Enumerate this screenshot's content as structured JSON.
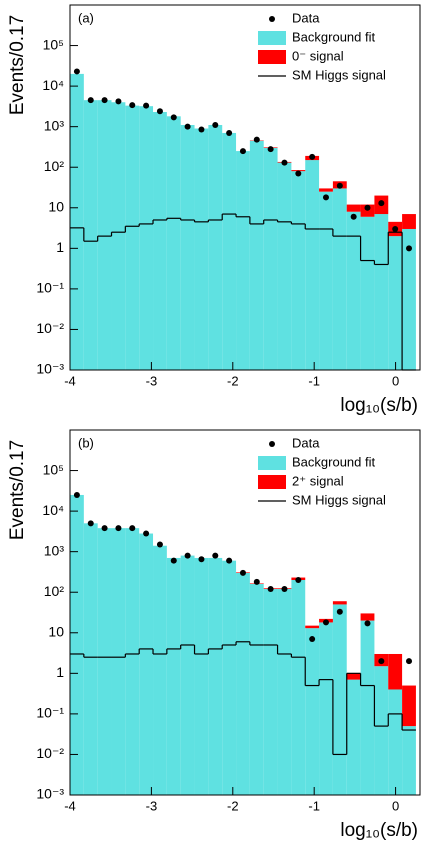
{
  "chart_data": [
    {
      "type": "histogram",
      "panel_label": "(a)",
      "ylabel": "Events/0.17",
      "xlabel": "log₁₀(s/b)",
      "log_scale": true,
      "bins": [
        -4,
        -3.83,
        -3.66,
        -3.49,
        -3.32,
        -3.15,
        -2.98,
        -2.81,
        -2.64,
        -2.47,
        -2.3,
        -2.13,
        -1.96,
        -1.79,
        -1.62,
        -1.45,
        -1.28,
        -1.11,
        -0.94,
        -0.77,
        -0.6,
        -0.43,
        -0.26,
        -0.09,
        0.08,
        0.25
      ],
      "xlim": [
        -4,
        0.3
      ],
      "xticks": [
        -4,
        -3,
        -2,
        -1,
        0
      ],
      "ylim": [
        0.001,
        1000000
      ],
      "yticks": [
        {
          "value": 0.001,
          "label": "10⁻³"
        },
        {
          "value": 0.01,
          "label": "10⁻²"
        },
        {
          "value": 0.1,
          "label": "10⁻¹"
        },
        1,
        10,
        {
          "value": 100,
          "label": "10²"
        },
        {
          "value": 1000,
          "label": "10³"
        },
        {
          "value": 10000,
          "label": "10⁴"
        },
        {
          "value": 100000,
          "label": "10⁵"
        }
      ],
      "series": [
        {
          "name": "Data",
          "color": "#000000",
          "style": "points",
          "values": [
            23000,
            4500,
            4500,
            4200,
            3400,
            3300,
            2400,
            1700,
            1000,
            850,
            1100,
            700,
            250,
            480,
            280,
            130,
            70,
            180,
            18,
            35,
            6,
            10,
            13,
            3,
            1
          ]
        },
        {
          "name": "Background fit",
          "color": "#5fe1e1",
          "style": "fill",
          "values": [
            20000,
            4500,
            4500,
            4000,
            3300,
            3200,
            2300,
            1800,
            1100,
            900,
            1100,
            700,
            250,
            450,
            300,
            130,
            80,
            150,
            25,
            30,
            8,
            6,
            7,
            2,
            3
          ]
        },
        {
          "name": "0⁻ signal",
          "color": "#ff0000",
          "style": "stacked",
          "values": [
            0,
            0,
            0,
            0,
            0,
            0,
            0,
            0,
            0,
            0,
            0,
            0,
            0,
            10,
            10,
            5,
            5,
            40,
            5,
            15,
            4,
            6,
            13,
            2.5,
            4
          ]
        },
        {
          "name": "SM Higgs signal",
          "color": "#000000",
          "style": "step",
          "values": [
            3.2,
            1.5,
            2,
            2.5,
            3.5,
            4,
            5,
            5.5,
            5,
            4.5,
            5,
            7,
            6,
            4,
            5,
            4.5,
            4,
            3,
            3,
            2,
            2,
            0.5,
            0.4,
            2.5,
            0.001
          ]
        }
      ]
    },
    {
      "type": "histogram",
      "panel_label": "(b)",
      "ylabel": "Events/0.17",
      "xlabel": "log₁₀(s/b)",
      "log_scale": true,
      "bins": [
        -4,
        -3.83,
        -3.66,
        -3.49,
        -3.32,
        -3.15,
        -2.98,
        -2.81,
        -2.64,
        -2.47,
        -2.3,
        -2.13,
        -1.96,
        -1.79,
        -1.62,
        -1.45,
        -1.28,
        -1.11,
        -0.94,
        -0.77,
        -0.6,
        -0.43,
        -0.26,
        -0.09,
        0.08,
        0.25
      ],
      "xlim": [
        -4,
        0.3
      ],
      "xticks": [
        -4,
        -3,
        -2,
        -1,
        0
      ],
      "ylim": [
        0.001,
        1000000
      ],
      "yticks": [
        {
          "value": 0.001,
          "label": "10⁻³"
        },
        {
          "value": 0.01,
          "label": "10⁻²"
        },
        {
          "value": 0.1,
          "label": "10⁻¹"
        },
        1,
        10,
        {
          "value": 100,
          "label": "10²"
        },
        {
          "value": 1000,
          "label": "10³"
        },
        {
          "value": 10000,
          "label": "10⁴"
        },
        {
          "value": 100000,
          "label": "10⁵"
        }
      ],
      "series": [
        {
          "name": "Data",
          "color": "#000000",
          "style": "points",
          "values": [
            25000,
            5000,
            3800,
            3800,
            3800,
            2800,
            1500,
            600,
            800,
            650,
            800,
            600,
            300,
            180,
            120,
            120,
            200,
            7,
            18,
            33,
            null,
            17,
            2,
            null,
            2
          ]
        },
        {
          "name": "Background fit",
          "color": "#5fe1e1",
          "style": "fill",
          "values": [
            25000,
            5000,
            3800,
            3800,
            3800,
            2800,
            1400,
            700,
            800,
            700,
            700,
            600,
            300,
            160,
            120,
            120,
            200,
            13,
            18,
            50,
            0.7,
            20,
            1.5,
            0.4,
            0.05
          ]
        },
        {
          "name": "2⁺ signal",
          "color": "#ff0000",
          "style": "stacked",
          "values": [
            0,
            0,
            0,
            0,
            0,
            0,
            0,
            0,
            0,
            0,
            0,
            0,
            10,
            5,
            5,
            5,
            30,
            2,
            4,
            10,
            0.3,
            10,
            1.5,
            2.6,
            0.45
          ]
        },
        {
          "name": "SM Higgs signal",
          "color": "#000000",
          "style": "step",
          "values": [
            3,
            2.5,
            2.5,
            2.5,
            3,
            4,
            3,
            4,
            5,
            3,
            4,
            5,
            6,
            5,
            5,
            3,
            2.5,
            0.5,
            0.7,
            0.01,
            1,
            0.5,
            0.05,
            0.1,
            0.04
          ]
        }
      ]
    }
  ]
}
